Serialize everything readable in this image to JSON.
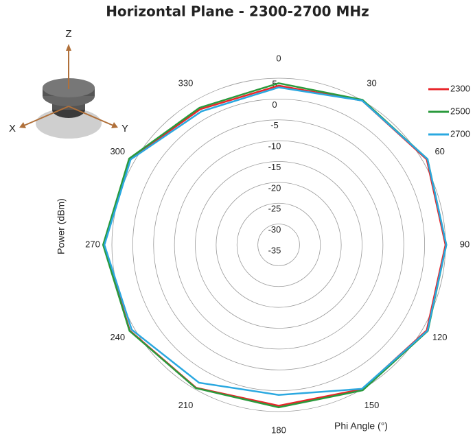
{
  "chart_data": {
    "type": "polar",
    "title": "Horizontal Plane - 2300-2700 MHz",
    "x_label": "Phi Angle (°)",
    "y_label": "Power (dBm)",
    "annotations": [
      "Z",
      "X",
      "Y"
    ],
    "theta": [
      0,
      30,
      60,
      90,
      120,
      150,
      180,
      210,
      240,
      270,
      300,
      330
    ],
    "thetaticks": [
      0,
      30,
      60,
      90,
      120,
      150,
      180,
      210,
      240,
      270,
      300,
      330
    ],
    "rlim": [
      -35,
      5
    ],
    "rticks": [
      5,
      0,
      -5,
      -10,
      -15,
      -20,
      -25,
      -30,
      -35
    ],
    "series": [
      {
        "name": "2300",
        "color": "#e8262b",
        "values": [
          3.2,
          5.0,
          6.0,
          5.0,
          6.0,
          5.0,
          3.6,
          4.6,
          6.2,
          7.0,
          6.2,
          2.6
        ]
      },
      {
        "name": "2500",
        "color": "#2a9a3c",
        "values": [
          3.8,
          5.2,
          6.2,
          5.2,
          6.3,
          5.3,
          4.0,
          4.7,
          6.3,
          7.1,
          6.4,
          3.0
        ]
      },
      {
        "name": "2700",
        "color": "#2aa8e0",
        "values": [
          2.8,
          5.0,
          6.2,
          5.2,
          6.2,
          4.9,
          1.0,
          3.2,
          5.7,
          6.8,
          6.0,
          2.0
        ]
      }
    ]
  }
}
